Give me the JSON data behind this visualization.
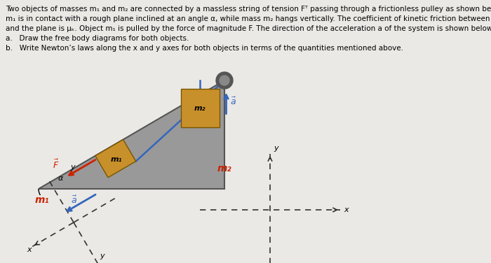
{
  "bg_color": "#ebe9e6",
  "text_color": "#000000",
  "red_color": "#cc2200",
  "blue_color": "#3366bb",
  "orange_color": "#c8902a",
  "title_lines": [
    "Two objects of masses m₁ and m₂ are connected by a massless string of tension Fᵀ passing through a frictionless pulley as shown below. Mass",
    "m₁ is in contact with a rough plane inclined at an angle α, while mass m₂ hangs vertically. The coefficient of kinetic friction between the objects",
    "and the plane is μₖ. Object m₁ is pulled by the force of magnitude F. The direction of the acceleration a of the system is shown below.",
    "a.   Draw the free body diagrams for both objects.",
    "b.   Write Newton’s laws along the x and y axes for both objects in terms of the quantities mentioned above."
  ],
  "string_color": "#3366bb",
  "angle_label": "α",
  "m1_label": "m₁",
  "m2_label": "m₂",
  "a_vector_color": "#3366bb",
  "F_vector_color": "#cc2200",
  "coord_color": "#333333"
}
